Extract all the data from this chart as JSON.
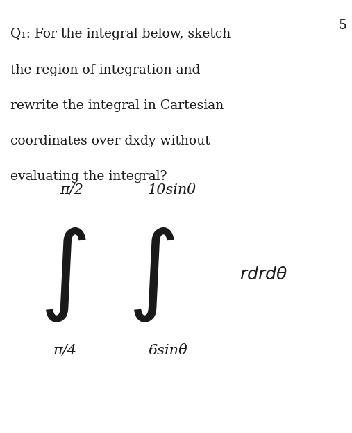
{
  "bg_color": "#ffffff",
  "text_color": "#1a1a1a",
  "question_lines": [
    "Q₁: For the integral below, sketch",
    "the region of integration and",
    "rewrite the integral in Cartesian",
    "coordinates over dxdy without",
    "evaluating the integral?"
  ],
  "corner_number": "5",
  "upper_limit_outer": "π/2",
  "lower_limit_outer": "π/4",
  "upper_limit_inner": "10sinθ",
  "lower_limit_inner": "6sinθ",
  "integrand": "rdr dθ",
  "fig_width": 5.07,
  "fig_height": 6.23,
  "dpi": 100
}
